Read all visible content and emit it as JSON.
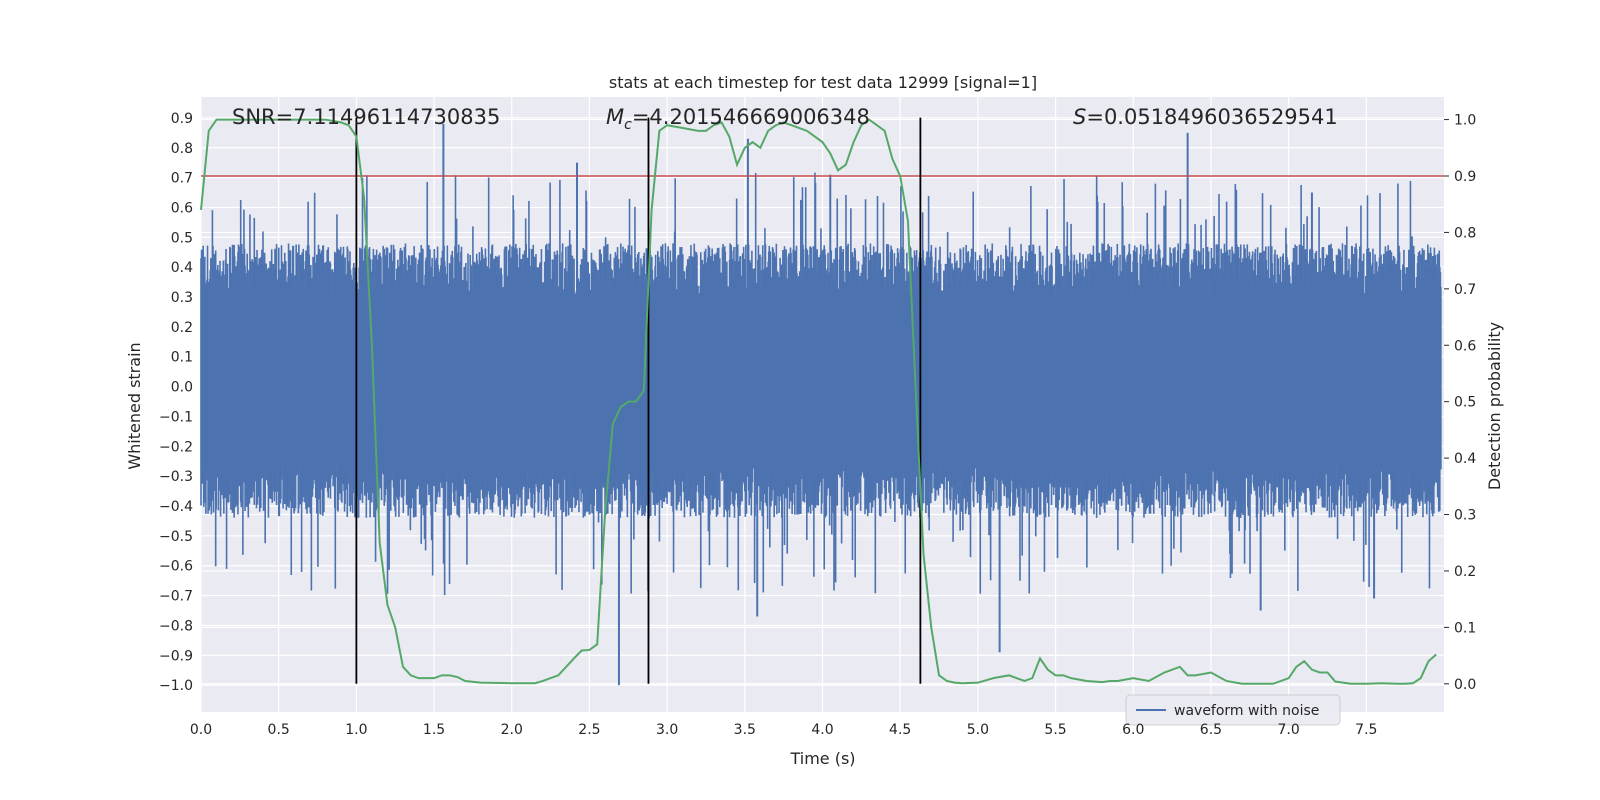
{
  "chart_data": {
    "type": "line",
    "title": "stats at each timestep for test data 12999 [signal=1]",
    "xlabel": "Time (s)",
    "ylabel_left": "Whitened strain",
    "ylabel_right": "Detection probability",
    "xlim": [
      0.0,
      8.0
    ],
    "ylim_left": [
      -1.09,
      0.97
    ],
    "ylim_right": [
      -0.05,
      1.04
    ],
    "x_ticks": [
      0.0,
      0.5,
      1.0,
      1.5,
      2.0,
      2.5,
      3.0,
      3.5,
      4.0,
      4.5,
      5.0,
      5.5,
      6.0,
      6.5,
      7.0,
      7.5
    ],
    "x_tick_labels": [
      "0.0",
      "0.5",
      "1.0",
      "1.5",
      "2.0",
      "2.5",
      "3.0",
      "3.5",
      "4.0",
      "4.5",
      "5.0",
      "5.5",
      "6.0",
      "6.5",
      "7.0",
      "7.5"
    ],
    "y_left_ticks": [
      0.9,
      0.8,
      0.7,
      0.6,
      0.5,
      0.4,
      0.3,
      0.2,
      0.1,
      0.0,
      -0.1,
      -0.2,
      -0.3,
      -0.4,
      -0.5,
      -0.6,
      -0.7,
      -0.8,
      -0.9,
      -1.0
    ],
    "y_left_tick_labels": [
      "0.9",
      "0.8",
      "0.7",
      "0.6",
      "0.5",
      "0.4",
      "0.3",
      "0.2",
      "0.1",
      "0.0",
      "−0.1",
      "−0.2",
      "−0.3",
      "−0.4",
      "−0.5",
      "−0.6",
      "−0.7",
      "−0.8",
      "−0.9",
      "−1.0"
    ],
    "y_right_ticks": [
      1.0,
      0.9,
      0.8,
      0.7,
      0.6,
      0.5,
      0.4,
      0.3,
      0.2,
      0.1,
      0.0
    ],
    "y_right_tick_labels": [
      "1.0",
      "0.9",
      "0.8",
      "0.7",
      "0.6",
      "0.5",
      "0.4",
      "0.3",
      "0.2",
      "0.1",
      "0.0"
    ],
    "grid": true,
    "legend": {
      "placement": "lower-center",
      "entries": [
        "waveform with noise"
      ]
    },
    "annotations": {
      "snr_label": "SNR=7.11496114730835",
      "mc_symbol": "M",
      "mc_subscript": "c",
      "mc_value": "=4.201546669006348",
      "s_symbol": "S",
      "s_value": "=0.0518496036529541"
    },
    "vertical_lines_x": [
      1.0,
      2.88,
      4.63
    ],
    "threshold_probability": 0.9,
    "waveform": {
      "name": "waveform with noise",
      "typical_positive_envelope": 0.45,
      "typical_negative_envelope": -0.42,
      "peak_spikes": [
        {
          "x": 1.56,
          "y": 0.88
        },
        {
          "x": 2.42,
          "y": 0.75
        },
        {
          "x": 3.52,
          "y": 0.83
        },
        {
          "x": 4.05,
          "y": 0.71
        },
        {
          "x": 6.35,
          "y": 0.85
        },
        {
          "x": 7.15,
          "y": 0.65
        },
        {
          "x": 2.69,
          "y": -1.0
        },
        {
          "x": 3.58,
          "y": -0.77
        },
        {
          "x": 5.14,
          "y": -0.89
        },
        {
          "x": 6.82,
          "y": -0.75
        },
        {
          "x": 7.55,
          "y": -0.71
        }
      ]
    },
    "probability_series": {
      "x": [
        0.0,
        0.05,
        0.1,
        0.2,
        0.5,
        0.8,
        0.9,
        0.95,
        1.0,
        1.05,
        1.1,
        1.15,
        1.2,
        1.25,
        1.3,
        1.35,
        1.4,
        1.45,
        1.5,
        1.55,
        1.6,
        1.65,
        1.7,
        1.8,
        2.0,
        2.15,
        2.2,
        2.3,
        2.4,
        2.45,
        2.5,
        2.55,
        2.6,
        2.65,
        2.7,
        2.75,
        2.8,
        2.85,
        2.9,
        2.95,
        3.0,
        3.1,
        3.2,
        3.25,
        3.3,
        3.35,
        3.4,
        3.45,
        3.5,
        3.55,
        3.6,
        3.65,
        3.7,
        3.75,
        3.8,
        3.9,
        4.0,
        4.05,
        4.1,
        4.15,
        4.2,
        4.25,
        4.3,
        4.35,
        4.4,
        4.45,
        4.5,
        4.55,
        4.6,
        4.65,
        4.7,
        4.75,
        4.8,
        4.85,
        4.9,
        5.0,
        5.1,
        5.2,
        5.3,
        5.35,
        5.4,
        5.45,
        5.5,
        5.55,
        5.6,
        5.7,
        5.8,
        5.85,
        5.9,
        6.0,
        6.1,
        6.2,
        6.3,
        6.35,
        6.4,
        6.5,
        6.6,
        6.7,
        6.8,
        6.9,
        7.0,
        7.05,
        7.1,
        7.15,
        7.2,
        7.25,
        7.3,
        7.4,
        7.5,
        7.6,
        7.7,
        7.75,
        7.8,
        7.85,
        7.9,
        7.95
      ],
      "y": [
        0.84,
        0.98,
        1.0,
        1.0,
        1.0,
        1.0,
        0.995,
        0.99,
        0.97,
        0.86,
        0.6,
        0.25,
        0.14,
        0.1,
        0.03,
        0.015,
        0.01,
        0.01,
        0.01,
        0.015,
        0.015,
        0.012,
        0.005,
        0.002,
        0.001,
        0.001,
        0.005,
        0.015,
        0.045,
        0.059,
        0.06,
        0.07,
        0.3,
        0.46,
        0.49,
        0.5,
        0.5,
        0.52,
        0.84,
        0.98,
        0.99,
        0.985,
        0.98,
        0.98,
        0.99,
        0.995,
        0.97,
        0.92,
        0.95,
        0.96,
        0.95,
        0.98,
        0.99,
        0.995,
        0.99,
        0.98,
        0.96,
        0.94,
        0.91,
        0.92,
        0.96,
        0.99,
        1.0,
        0.99,
        0.98,
        0.93,
        0.9,
        0.82,
        0.52,
        0.23,
        0.1,
        0.015,
        0.005,
        0.002,
        0.001,
        0.002,
        0.01,
        0.015,
        0.005,
        0.01,
        0.045,
        0.025,
        0.015,
        0.015,
        0.01,
        0.005,
        0.003,
        0.005,
        0.005,
        0.01,
        0.005,
        0.02,
        0.03,
        0.015,
        0.015,
        0.02,
        0.005,
        0.0,
        0.0,
        0.0,
        0.01,
        0.03,
        0.04,
        0.025,
        0.02,
        0.02,
        0.004,
        0.0,
        0.0,
        0.001,
        0.0,
        0.0,
        0.001,
        0.01,
        0.04,
        0.052
      ]
    },
    "colors": {
      "background": "#eaeaf2",
      "grid": "#ffffff",
      "waveform": "#4c72b0",
      "probability": "#55a868",
      "threshold": "#c44e52",
      "vertical_lines": "#000000"
    }
  }
}
